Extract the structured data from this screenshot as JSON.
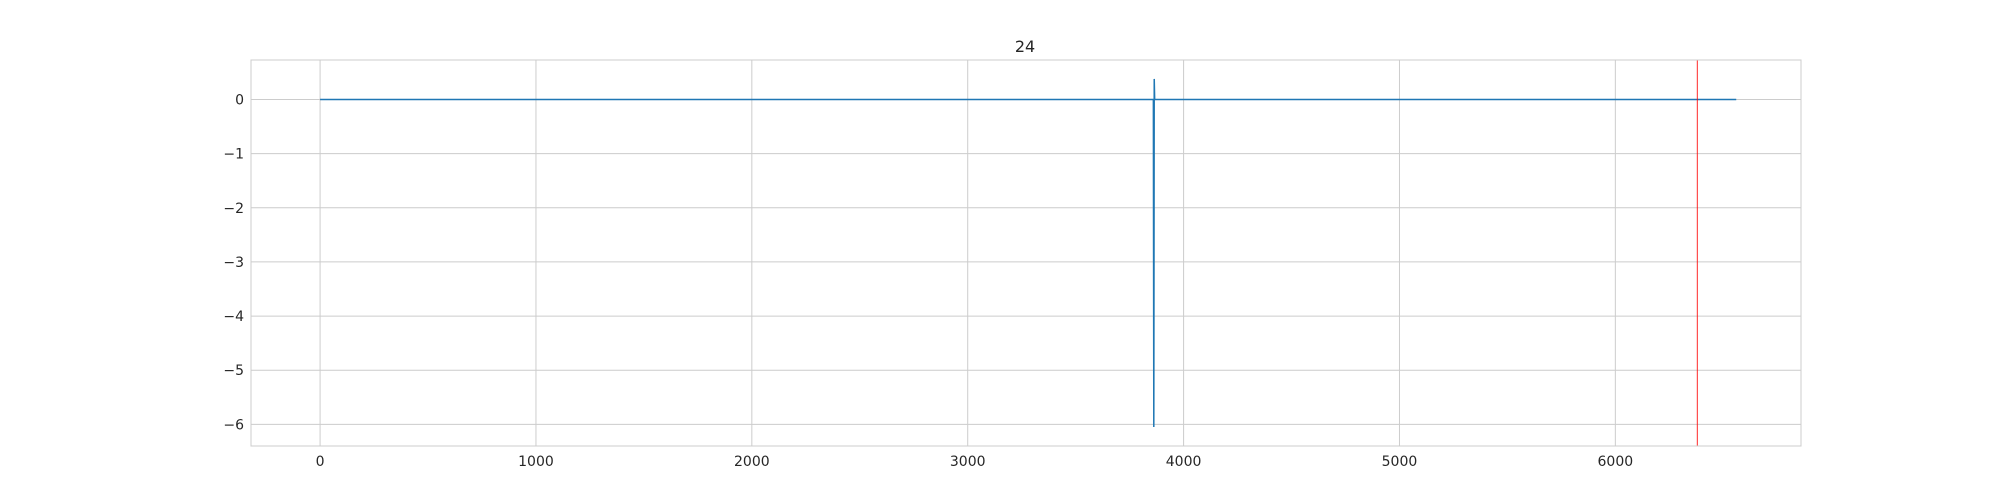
{
  "chart_data": {
    "type": "line",
    "title": "24",
    "xlabel": "",
    "ylabel": "",
    "xlim": [
      -320,
      6860
    ],
    "ylim": [
      -6.4,
      0.73
    ],
    "x_ticks": [
      0,
      1000,
      2000,
      3000,
      4000,
      5000,
      6000
    ],
    "y_ticks": [
      0,
      -1,
      -2,
      -3,
      -4,
      -5,
      -6
    ],
    "x_tick_labels": [
      "0",
      "1000",
      "2000",
      "3000",
      "4000",
      "5000",
      "6000"
    ],
    "y_tick_labels": [
      "0",
      "−1",
      "−2",
      "−3",
      "−4",
      "−5",
      "−6"
    ],
    "grid": true,
    "series": [
      {
        "color": "#1f77b4",
        "x": [
          0,
          3860,
          3862,
          3864,
          3866,
          3868,
          6560
        ],
        "y": [
          0,
          0,
          -6.05,
          0.38,
          0,
          0,
          0
        ]
      }
    ],
    "vlines": [
      {
        "x": 6380,
        "color": "#ff0000"
      }
    ]
  }
}
